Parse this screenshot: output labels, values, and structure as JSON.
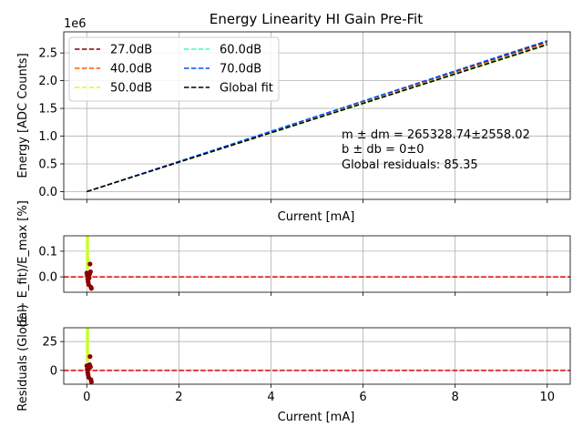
{
  "chart_data": [
    {
      "type": "line",
      "title": "Energy Linearity HI Gain Pre-Fit",
      "xlabel": "Current [mA]",
      "ylabel": "Energy [ADC Counts]",
      "y_offset_label": "1e6",
      "xlim": [
        -0.5,
        10.5
      ],
      "ylim": [
        -0.14,
        2.88
      ],
      "xticks": [
        0,
        2,
        4,
        6,
        8,
        10
      ],
      "yticks": [
        0.0,
        0.5,
        1.0,
        1.5,
        2.0,
        2.5
      ],
      "ytick_labels": [
        "0.0",
        "0.5",
        "1.0",
        "1.5",
        "2.0",
        "2.5"
      ],
      "grid": true,
      "legend_position": "upper-left",
      "series": [
        {
          "name": "27.0dB",
          "color": "#7f0000",
          "style": "dashed",
          "x": [
            0,
            10
          ],
          "y": [
            0.0,
            2.7
          ]
        },
        {
          "name": "40.0dB",
          "color": "#ff5a00",
          "style": "dashed",
          "x": [
            0,
            10
          ],
          "y": [
            0.0,
            2.68
          ]
        },
        {
          "name": "50.0dB",
          "color": "#c8ff2e",
          "style": "dashed",
          "x": [
            0,
            10
          ],
          "y": [
            0.0,
            2.64
          ]
        },
        {
          "name": "60.0dB",
          "color": "#3affc0",
          "style": "dashed",
          "x": [
            0,
            10
          ],
          "y": [
            0.0,
            2.66
          ]
        },
        {
          "name": "70.0dB",
          "color": "#0050ff",
          "style": "dashed",
          "x": [
            0,
            10
          ],
          "y": [
            0.0,
            2.72
          ]
        },
        {
          "name": "Global fit",
          "color": "#000000",
          "style": "dashed",
          "x": [
            0,
            10
          ],
          "y": [
            0.0,
            2.65
          ]
        }
      ],
      "annotation": {
        "line1": "m ± dm = 265328.74±2558.02",
        "line2": "b ± db = 0±0",
        "line3": "Global residuals: 85.35"
      }
    },
    {
      "type": "scatter",
      "xlabel": "",
      "ylabel": "(E − E_fit)/E_max [%]",
      "xlim": [
        -0.5,
        10.5
      ],
      "ylim": [
        -0.06,
        0.16
      ],
      "yticks": [
        0.0,
        0.1
      ],
      "ytick_labels": [
        "0.0",
        "0.1"
      ],
      "grid": true,
      "reference_line": {
        "y": 0,
        "color": "#e00000",
        "style": "dashed"
      },
      "band": {
        "color": "#c8ff2e",
        "x": [
          0.0,
          0.03
        ]
      },
      "points": [
        {
          "x": 0.0,
          "y": 0.015
        },
        {
          "x": 0.02,
          "y": -0.01
        },
        {
          "x": 0.03,
          "y": -0.02
        },
        {
          "x": 0.05,
          "y": -0.005
        },
        {
          "x": 0.06,
          "y": 0.01
        },
        {
          "x": 0.07,
          "y": 0.05
        },
        {
          "x": 0.08,
          "y": 0.02
        },
        {
          "x": 0.09,
          "y": -0.04
        },
        {
          "x": 0.1,
          "y": -0.045
        },
        {
          "x": 0.04,
          "y": -0.03
        },
        {
          "x": 0.01,
          "y": 0.005
        }
      ],
      "points_color": "#8b0000"
    },
    {
      "type": "scatter",
      "xlabel": "Current [mA]",
      "ylabel": "Residuals (Global)",
      "xlim": [
        -0.5,
        10.5
      ],
      "ylim": [
        -12,
        37
      ],
      "xticks": [
        0,
        2,
        4,
        6,
        8,
        10
      ],
      "yticks": [
        0,
        25
      ],
      "ytick_labels": [
        "0",
        "25"
      ],
      "grid": true,
      "reference_line": {
        "y": 0,
        "color": "#e00000",
        "style": "dashed"
      },
      "band": {
        "color": "#c8ff2e",
        "x": [
          0.0,
          0.03
        ]
      },
      "points": [
        {
          "x": 0.0,
          "y": 4
        },
        {
          "x": 0.02,
          "y": -2
        },
        {
          "x": 0.03,
          "y": -4
        },
        {
          "x": 0.05,
          "y": 2
        },
        {
          "x": 0.06,
          "y": 5
        },
        {
          "x": 0.07,
          "y": 12
        },
        {
          "x": 0.08,
          "y": 3
        },
        {
          "x": 0.09,
          "y": -8
        },
        {
          "x": 0.1,
          "y": -10
        },
        {
          "x": 0.04,
          "y": -6
        },
        {
          "x": 0.01,
          "y": 1
        }
      ],
      "points_color": "#8b0000"
    }
  ]
}
